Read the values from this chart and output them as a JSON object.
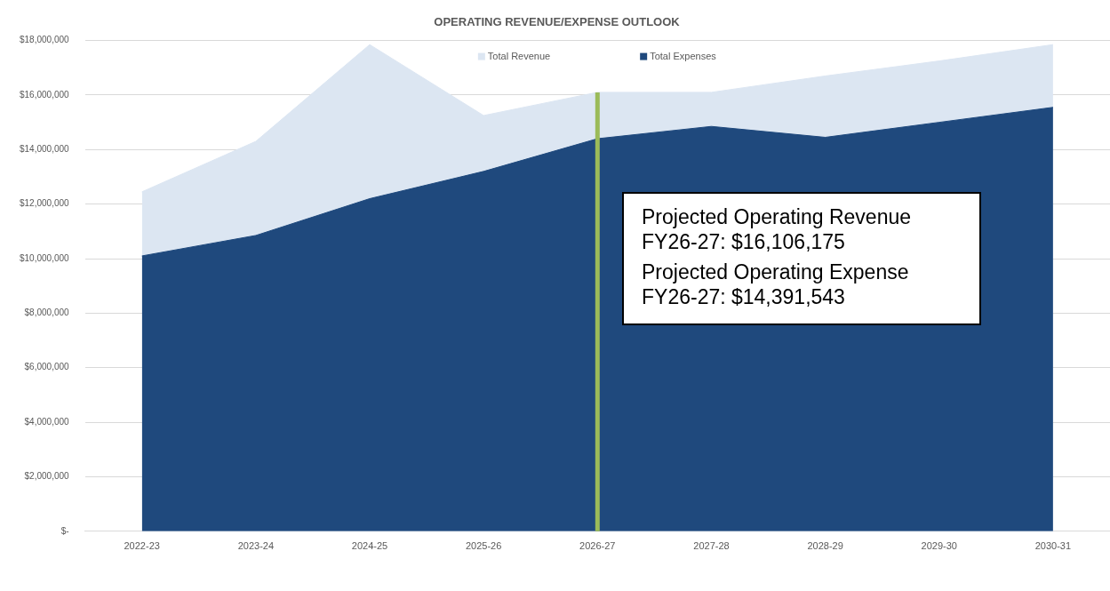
{
  "chart_data": {
    "type": "area",
    "title": "OPERATING REVENUE/EXPENSE OUTLOOK",
    "categories": [
      "2022-23",
      "2023-24",
      "2024-25",
      "2025-26",
      "2026-27",
      "2027-28",
      "2028-29",
      "2029-30",
      "2030-31"
    ],
    "series": [
      {
        "name": "Total Revenue",
        "color": "#dce6f2",
        "values": [
          12450000,
          14300000,
          17850000,
          15250000,
          16100000,
          16100000,
          16700000,
          17250000,
          17850000
        ]
      },
      {
        "name": "Total Expenses",
        "color": "#1f497d",
        "values": [
          10100000,
          10850000,
          12200000,
          13200000,
          14400000,
          14850000,
          14450000,
          15000000,
          15550000
        ]
      }
    ],
    "ylim": [
      0,
      18000000
    ],
    "yticks": [
      {
        "value": 0,
        "label": "$-"
      },
      {
        "value": 2000000,
        "label": "$2,000,000"
      },
      {
        "value": 4000000,
        "label": "$4,000,000"
      },
      {
        "value": 6000000,
        "label": "$6,000,000"
      },
      {
        "value": 8000000,
        "label": "$8,000,000"
      },
      {
        "value": 10000000,
        "label": "$10,000,000"
      },
      {
        "value": 12000000,
        "label": "$12,000,000"
      },
      {
        "value": 14000000,
        "label": "$14,000,000"
      },
      {
        "value": 16000000,
        "label": "$16,000,000"
      },
      {
        "value": 18000000,
        "label": "$18,000,000"
      }
    ],
    "grid": "y",
    "legend": "top",
    "ref_lines": [
      {
        "axis": "x",
        "value": "2026-27",
        "color": "#9bbb59"
      }
    ],
    "annotations": [
      "Projected Operating Revenue FY26-27: $16,106,175",
      "Projected Operating Expense FY26-27: $14,391,543"
    ]
  }
}
